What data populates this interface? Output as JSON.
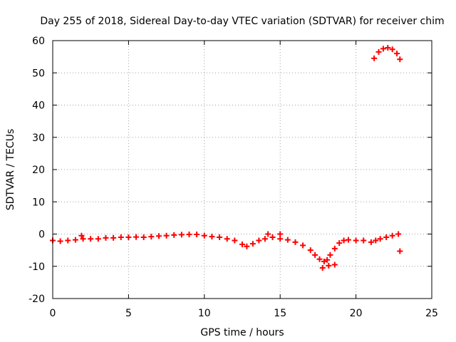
{
  "chart_data": {
    "type": "scatter",
    "title": "Day 255 of 2018, Sidereal Day-to-day VTEC variation (SDTVAR) for receiver chim",
    "xlabel": "GPS time / hours",
    "ylabel": "SDTVAR / TECUs",
    "xlim": [
      0,
      25
    ],
    "ylim": [
      -20,
      60
    ],
    "xticks": [
      0,
      5,
      10,
      15,
      20,
      25
    ],
    "yticks": [
      -20,
      -10,
      0,
      10,
      20,
      30,
      40,
      50,
      60
    ],
    "xtick_labels": [
      "0",
      "5",
      "10",
      "15",
      "20",
      "25"
    ],
    "ytick_labels": [
      "-20",
      "-10",
      "0",
      "10",
      "20",
      "30",
      "40",
      "50",
      "60"
    ],
    "grid": true,
    "marker": "plus",
    "series": [
      {
        "name": "SDTVAR",
        "color": "#ff0000",
        "x": [
          0.0,
          0.5,
          1.0,
          1.5,
          2.0,
          2.5,
          3.0,
          3.5,
          4.0,
          4.5,
          5.0,
          5.5,
          6.0,
          6.5,
          7.0,
          7.5,
          8.0,
          8.5,
          9.0,
          9.5,
          10.0,
          10.5,
          11.0,
          11.5,
          12.0,
          12.5,
          12.8,
          13.2,
          13.6,
          14.0,
          14.5,
          15.0,
          15.5,
          16.0,
          16.5,
          17.0,
          17.3,
          17.6,
          17.9,
          18.1,
          18.3,
          18.6,
          18.9,
          19.2,
          19.5,
          20.0,
          20.5,
          21.0,
          21.3,
          21.6,
          22.0,
          22.4,
          22.8,
          22.9,
          21.2,
          21.5,
          21.8,
          22.1,
          22.4,
          22.7,
          22.9,
          17.8,
          18.2,
          18.6,
          14.2,
          15.0,
          1.9
        ],
        "y": [
          -2.0,
          -2.2,
          -2.0,
          -1.8,
          -1.5,
          -1.5,
          -1.5,
          -1.2,
          -1.2,
          -1.0,
          -1.0,
          -0.9,
          -1.0,
          -0.8,
          -0.6,
          -0.5,
          -0.3,
          -0.2,
          -0.1,
          -0.1,
          -0.5,
          -0.8,
          -1.0,
          -1.5,
          -2.0,
          -3.2,
          -3.8,
          -3.0,
          -2.0,
          -1.5,
          -1.0,
          -1.5,
          -1.8,
          -2.5,
          -3.5,
          -5.0,
          -6.5,
          -7.8,
          -8.5,
          -8.0,
          -6.5,
          -4.5,
          -2.8,
          -2.0,
          -1.8,
          -2.0,
          -2.0,
          -2.5,
          -2.0,
          -1.5,
          -1.0,
          -0.5,
          0.0,
          -5.3,
          54.5,
          56.5,
          57.5,
          57.8,
          57.3,
          56.0,
          54.2,
          -10.5,
          -9.8,
          -9.5,
          0.0,
          0.0,
          -0.5
        ]
      }
    ]
  }
}
